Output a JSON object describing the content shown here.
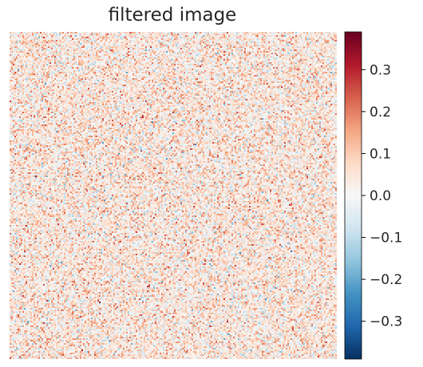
{
  "chart_data": {
    "type": "heatmap",
    "title": "filtered image",
    "colormap": "RdBu_r",
    "colormap_stops": [
      "#053061",
      "#2166ac",
      "#4393c3",
      "#92c5de",
      "#d1e5f0",
      "#f7f7f7",
      "#fddbc7",
      "#f4a582",
      "#d6604d",
      "#b2182b",
      "#67001f"
    ],
    "color_range": [
      -0.39,
      0.39
    ],
    "value_distribution": {
      "mean": 0.04,
      "std": 0.075,
      "description": "random noise"
    },
    "colorbar": {
      "ticks": [
        0.3,
        0.2,
        0.1,
        0.0,
        -0.1,
        -0.2,
        -0.3
      ],
      "tick_labels": [
        "0.3",
        "0.2",
        "0.1",
        "0.0",
        "−0.1",
        "−0.2",
        "−0.3"
      ]
    },
    "axes_visible": false,
    "grid": false
  }
}
